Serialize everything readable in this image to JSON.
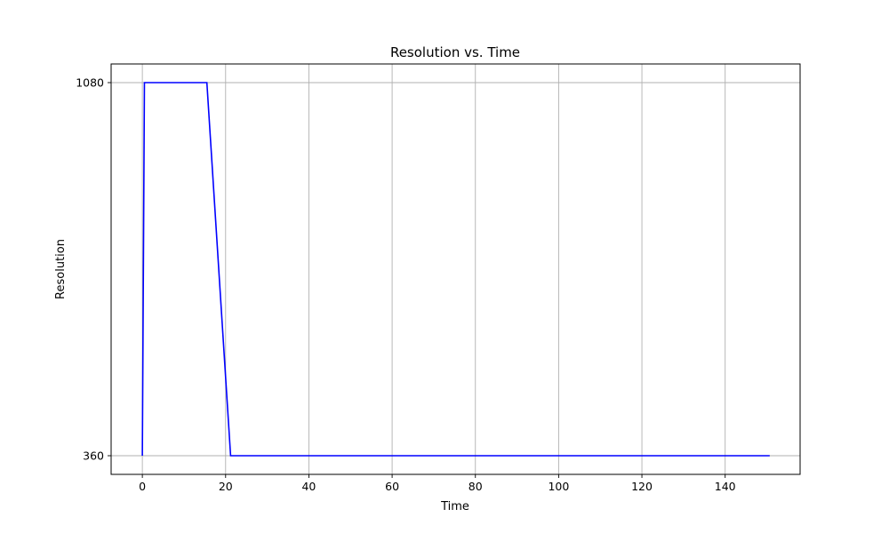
{
  "chart_data": {
    "type": "line",
    "title": "Resolution vs. Time",
    "xlabel": "Time",
    "ylabel": "Resolution",
    "xlim": [
      -7.5,
      158
    ],
    "ylim": [
      324,
      1116
    ],
    "xticks": [
      0,
      20,
      40,
      60,
      80,
      100,
      120,
      140
    ],
    "yticks": [
      360,
      1080
    ],
    "grid": true,
    "series": [
      {
        "color": "#0000ff",
        "x": [
          0,
          0.5,
          15.5,
          21.2,
          150.7
        ],
        "y": [
          360,
          1080,
          1080,
          360,
          360
        ]
      }
    ]
  }
}
